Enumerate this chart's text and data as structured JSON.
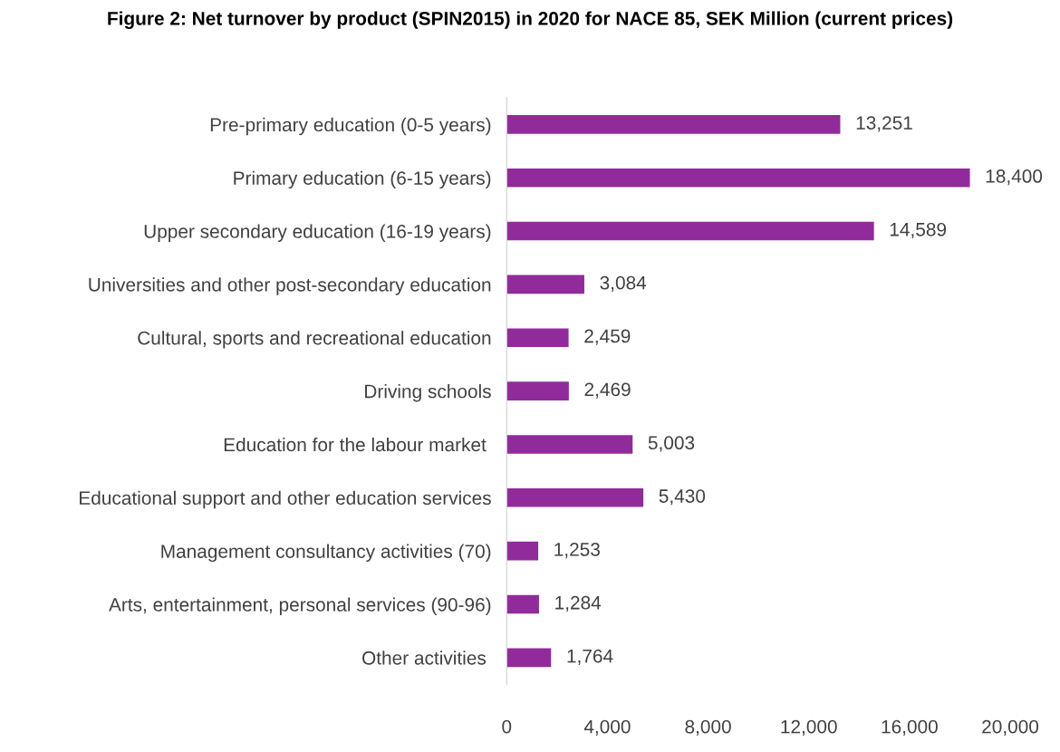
{
  "chart_data": {
    "type": "bar",
    "orientation": "horizontal",
    "title": "Figure 2: Net turnover by product (SPIN2015) in 2020 for NACE 85, SEK Million (current prices)",
    "categories": [
      "Pre-primary education (0-5 years)",
      "Primary education (6-15 years)",
      "Upper secondary education (16-19 years)",
      "Universities and other post-secondary education",
      "Cultural, sports and recreational education",
      "Driving schools",
      "Education for the labour market ",
      "Educational support and other education services",
      "Management consultancy activities (70)",
      "Arts, entertainment, personal services (90-96)",
      "Other activities "
    ],
    "values": [
      13251,
      18400,
      14589,
      3084,
      2459,
      2469,
      5003,
      5430,
      1253,
      1284,
      1764
    ],
    "value_labels": [
      "13,251",
      "18,400",
      "14,589",
      "3,084",
      "2,459",
      "2,469",
      "5,003",
      "5,430",
      "1,253",
      "1,284",
      "1,764"
    ],
    "color": "#912b9c",
    "xlim": [
      0,
      20000
    ],
    "xticks": [
      0,
      {
        "value": 4000,
        "label": "4,000"
      },
      {
        "value": 8000,
        "label": "8,000"
      },
      {
        "value": 12000,
        "label": "12,000"
      },
      {
        "value": 16000,
        "label": "16,000"
      },
      {
        "value": 20000,
        "label": "20,000"
      }
    ],
    "grid": false,
    "legend": false
  }
}
